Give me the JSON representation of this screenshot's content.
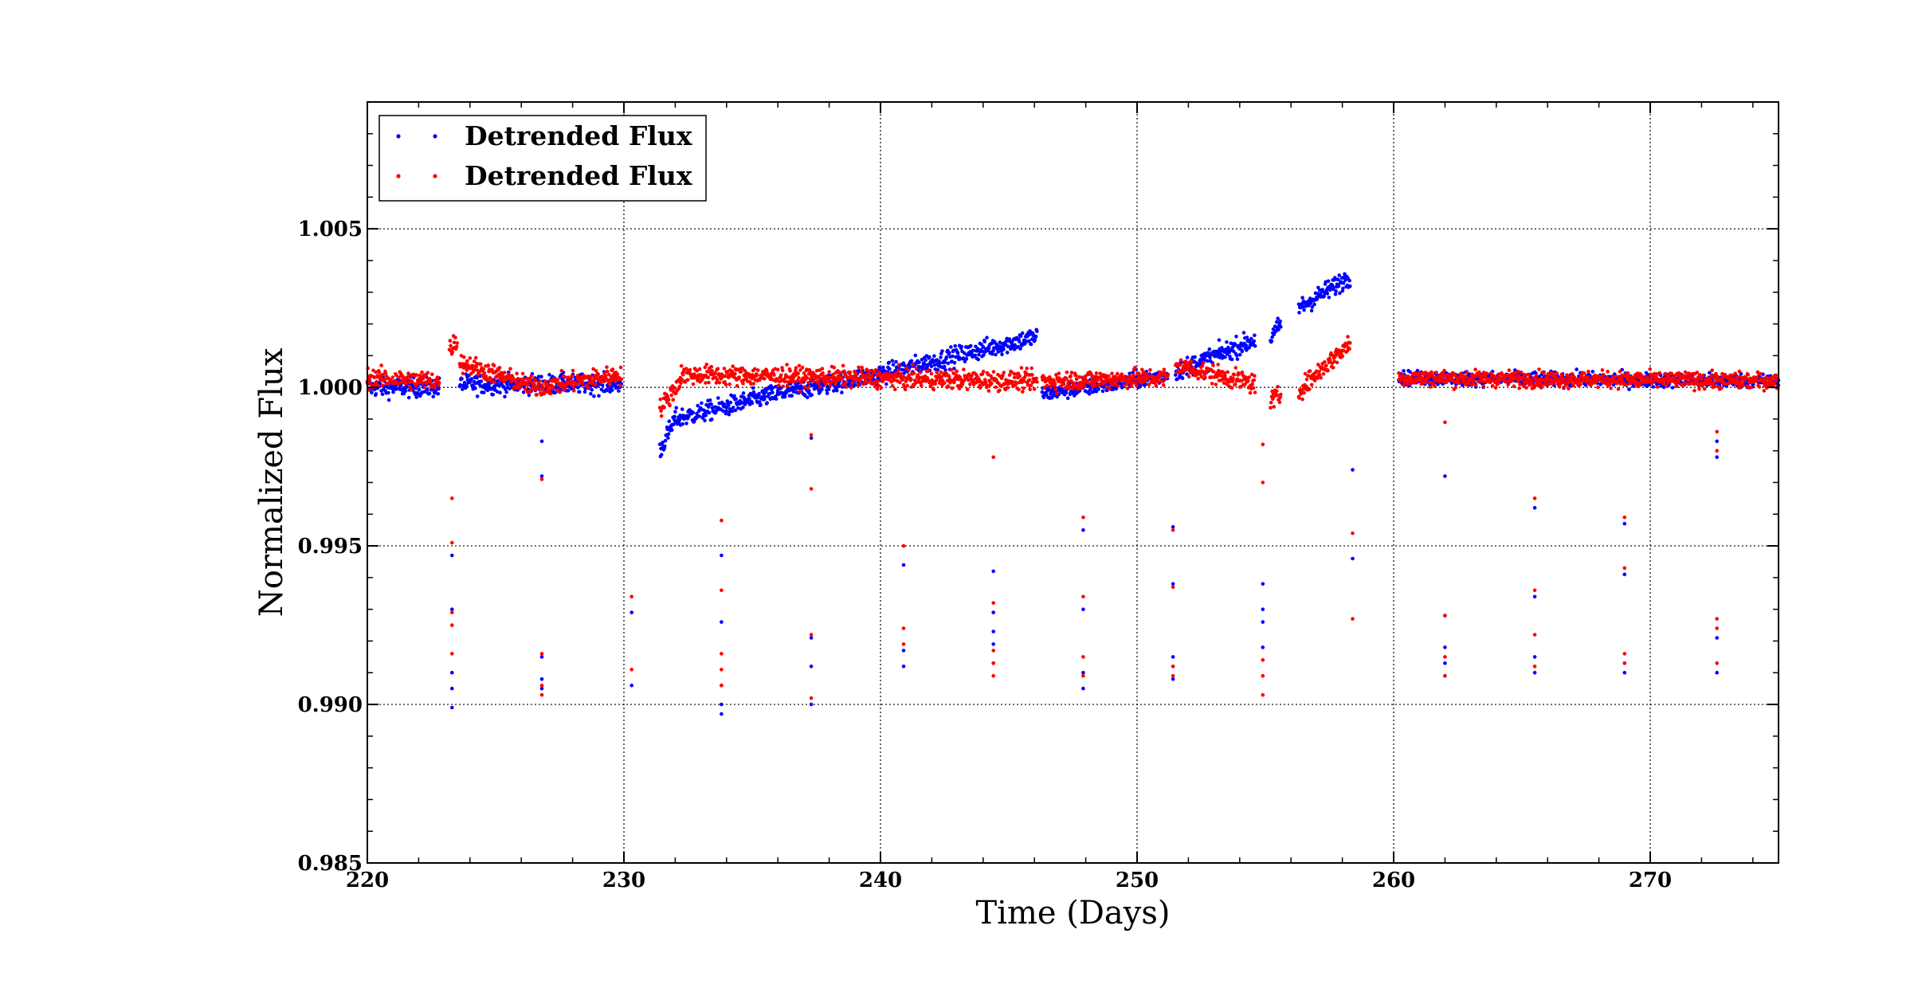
{
  "chart_data": {
    "type": "scatter",
    "xlabel": "Time (Days)",
    "ylabel": "Normalized Flux",
    "xlim": [
      220,
      275
    ],
    "ylim": [
      0.985,
      1.009
    ],
    "xticks": [
      220,
      230,
      240,
      250,
      260,
      270
    ],
    "xtick_labels": [
      "220",
      "230",
      "240",
      "250",
      "260",
      "270"
    ],
    "yticks": [
      0.985,
      0.99,
      0.995,
      1.0,
      1.005
    ],
    "ytick_labels": [
      "0.985",
      "0.990",
      "0.995",
      "1.000",
      "1.005"
    ],
    "grid": true,
    "legend": "top-left",
    "series": [
      {
        "name": "Detrended Flux",
        "color": "#0000ff",
        "segments": [
          {
            "x": [
              220.0,
              222.8
            ],
            "y": [
              1.0,
              1.0
            ],
            "noise": 0.0003
          },
          {
            "x": [
              223.6,
              229.9
            ],
            "y": [
              1.0001,
              1.0001
            ],
            "noise": 0.0003
          },
          {
            "x": [
              231.4,
              232.0
            ],
            "y": [
              0.998,
              0.999
            ],
            "noise": 0.0003
          },
          {
            "x": [
              232.0,
              236.0
            ],
            "y": [
              0.999,
              0.9998
            ],
            "noise": 0.0003
          },
          {
            "x": [
              236.0,
              240.5
            ],
            "y": [
              0.9998,
              1.0005
            ],
            "noise": 0.0003
          },
          {
            "x": [
              240.5,
              244.0
            ],
            "y": [
              1.0005,
              1.0012
            ],
            "noise": 0.0003
          },
          {
            "x": [
              244.0,
              246.1
            ],
            "y": [
              1.0012,
              1.0016
            ],
            "noise": 0.0003
          },
          {
            "x": [
              246.3,
              249.0
            ],
            "y": [
              0.9998,
              1.0001
            ],
            "noise": 0.00025
          },
          {
            "x": [
              249.0,
              251.2
            ],
            "y": [
              1.0001,
              1.0004
            ],
            "noise": 0.00025
          },
          {
            "x": [
              251.5,
              254.6
            ],
            "y": [
              1.0005,
              1.0015
            ],
            "noise": 0.0003
          },
          {
            "x": [
              255.2,
              255.6
            ],
            "y": [
              1.0015,
              1.002
            ],
            "noise": 0.0003
          },
          {
            "x": [
              256.3,
              258.3
            ],
            "y": [
              1.0025,
              1.0035
            ],
            "noise": 0.0003
          },
          {
            "x": [
              260.2,
              275.0
            ],
            "y": [
              1.0003,
              1.0002
            ],
            "noise": 0.00022
          }
        ],
        "transits": [
          {
            "x": 223.3,
            "y": [
              0.9899,
              0.9905,
              0.991,
              0.993,
              0.9947
            ]
          },
          {
            "x": 226.8,
            "y": [
              0.9905,
              0.9908,
              0.9915,
              0.9972,
              0.9983
            ]
          },
          {
            "x": 230.3,
            "y": [
              0.9906,
              0.9929
            ]
          },
          {
            "x": 233.8,
            "y": [
              0.9897,
              0.99,
              0.9906,
              0.9926,
              0.9947
            ]
          },
          {
            "x": 237.3,
            "y": [
              0.99,
              0.9912,
              0.9921,
              0.9984
            ]
          },
          {
            "x": 240.9,
            "y": [
              0.9912,
              0.9917,
              0.9944
            ]
          },
          {
            "x": 244.4,
            "y": [
              0.9913,
              0.9919,
              0.9923,
              0.9929,
              0.9942
            ]
          },
          {
            "x": 247.9,
            "y": [
              0.9905,
              0.991,
              0.993,
              0.9955
            ]
          },
          {
            "x": 251.4,
            "y": [
              0.9908,
              0.9912,
              0.9915,
              0.9938,
              0.9956
            ]
          },
          {
            "x": 254.9,
            "y": [
              0.9918,
              0.9926,
              0.993,
              0.9938
            ]
          },
          {
            "x": 258.4,
            "y": [
              0.9946,
              0.9974
            ]
          },
          {
            "x": 262.0,
            "y": [
              0.9909,
              0.9913,
              0.9918,
              0.9928,
              0.9972
            ]
          },
          {
            "x": 265.5,
            "y": [
              0.991,
              0.9915,
              0.9934,
              0.9962
            ]
          },
          {
            "x": 269.0,
            "y": [
              0.991,
              0.9913,
              0.9941,
              0.9957
            ]
          },
          {
            "x": 272.6,
            "y": [
              0.991,
              0.9921,
              0.9978,
              0.9983
            ]
          }
        ]
      },
      {
        "name": "Detrended Flux",
        "color": "#ff0000",
        "segments": [
          {
            "x": [
              220.0,
              222.8
            ],
            "y": [
              1.0003,
              1.0002
            ],
            "noise": 0.0003
          },
          {
            "x": [
              223.2,
              223.5
            ],
            "y": [
              1.0012,
              1.0015
            ],
            "noise": 0.0003
          },
          {
            "x": [
              223.6,
              226.5
            ],
            "y": [
              1.0008,
              1.0
            ],
            "noise": 0.0003
          },
          {
            "x": [
              226.5,
              229.9
            ],
            "y": [
              1.0,
              1.0004
            ],
            "noise": 0.0003
          },
          {
            "x": [
              231.4,
              232.2
            ],
            "y": [
              0.9993,
              1.0002
            ],
            "noise": 0.0003
          },
          {
            "x": [
              232.2,
              246.1
            ],
            "y": [
              1.0004,
              1.0002
            ],
            "noise": 0.0003
          },
          {
            "x": [
              246.3,
              251.2
            ],
            "y": [
              1.0002,
              1.0003
            ],
            "noise": 0.0003
          },
          {
            "x": [
              251.5,
              254.6
            ],
            "y": [
              1.0007,
              1.0001
            ],
            "noise": 0.0003
          },
          {
            "x": [
              255.2,
              255.6
            ],
            "y": [
              0.9996,
              0.9997
            ],
            "noise": 0.0003
          },
          {
            "x": [
              256.3,
              258.3
            ],
            "y": [
              0.9999,
              1.0014
            ],
            "noise": 0.0003
          },
          {
            "x": [
              260.2,
              275.0
            ],
            "y": [
              1.0003,
              1.0002
            ],
            "noise": 0.00025
          }
        ],
        "transits": [
          {
            "x": 223.3,
            "y": [
              0.9916,
              0.9925,
              0.9929,
              0.9951,
              0.9965
            ]
          },
          {
            "x": 226.8,
            "y": [
              0.9903,
              0.9906,
              0.9916,
              0.9971
            ]
          },
          {
            "x": 230.3,
            "y": [
              0.9911,
              0.9934
            ]
          },
          {
            "x": 233.8,
            "y": [
              0.9906,
              0.9911,
              0.9916,
              0.9936,
              0.9958
            ]
          },
          {
            "x": 237.3,
            "y": [
              0.9902,
              0.9922,
              0.9968,
              0.9985
            ]
          },
          {
            "x": 240.9,
            "y": [
              0.9919,
              0.9924,
              0.995
            ]
          },
          {
            "x": 244.4,
            "y": [
              0.9909,
              0.9913,
              0.9917,
              0.9932,
              0.9978
            ]
          },
          {
            "x": 247.9,
            "y": [
              0.9909,
              0.9915,
              0.9934,
              0.9959
            ]
          },
          {
            "x": 251.4,
            "y": [
              0.9909,
              0.9912,
              0.9937,
              0.9955
            ]
          },
          {
            "x": 254.9,
            "y": [
              0.9903,
              0.9909,
              0.9914,
              0.997,
              0.9982
            ]
          },
          {
            "x": 258.4,
            "y": [
              0.9927,
              0.9954
            ]
          },
          {
            "x": 262.0,
            "y": [
              0.9909,
              0.9915,
              0.9928,
              0.9989
            ]
          },
          {
            "x": 265.5,
            "y": [
              0.9912,
              0.9922,
              0.9936,
              0.9965
            ]
          },
          {
            "x": 269.0,
            "y": [
              0.9913,
              0.9916,
              0.9943,
              0.9959
            ]
          },
          {
            "x": 272.6,
            "y": [
              0.9913,
              0.9924,
              0.9927,
              0.998,
              0.9986
            ]
          }
        ]
      }
    ]
  }
}
